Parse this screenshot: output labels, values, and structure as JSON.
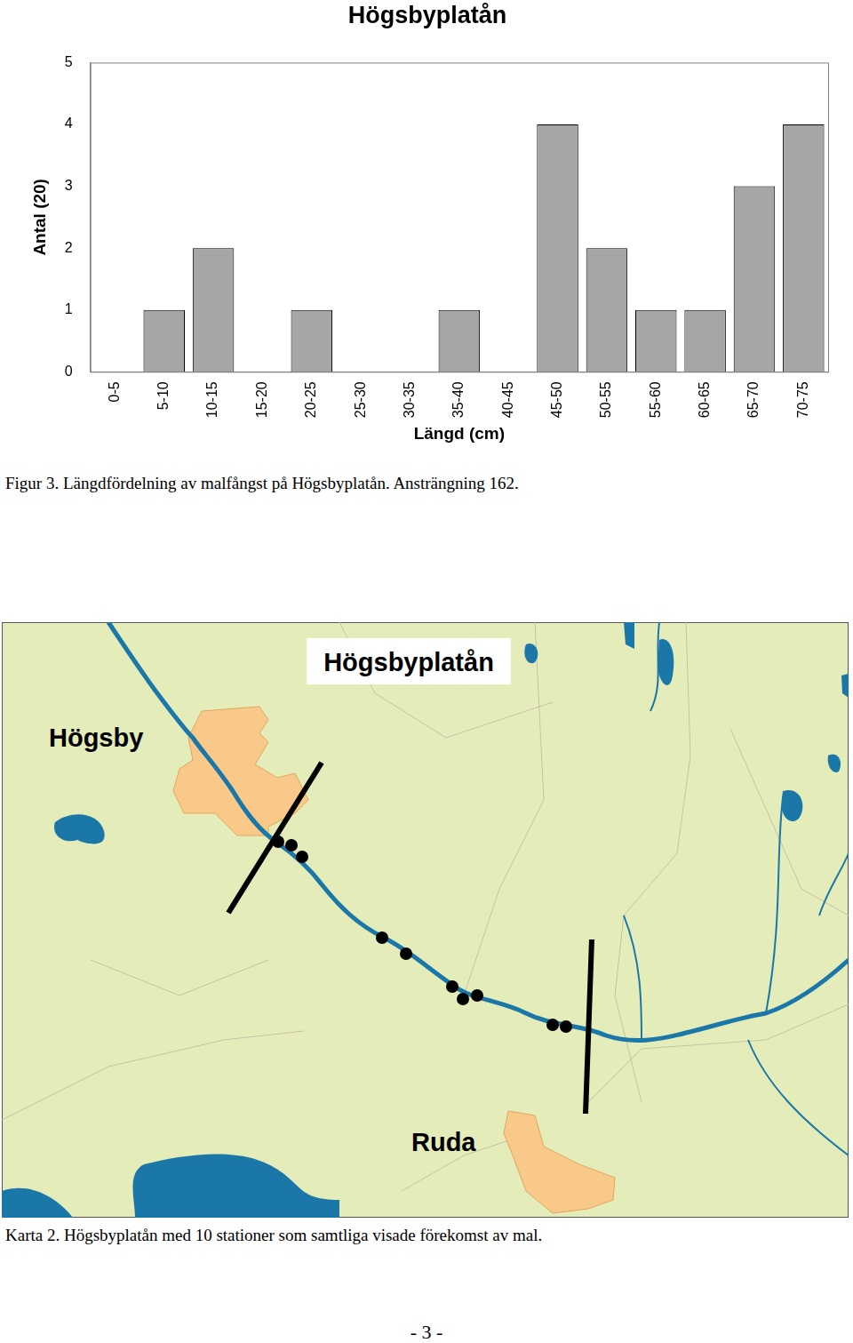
{
  "chart_data": {
    "type": "bar",
    "title": "Högsbyplatån",
    "x_label": "Längd (cm)",
    "y_label": "Antal (20)",
    "categories": [
      "0-5",
      "5-10",
      "10-15",
      "15-20",
      "20-25",
      "25-30",
      "30-35",
      "35-40",
      "40-45",
      "45-50",
      "50-55",
      "55-60",
      "60-65",
      "65-70",
      "70-75"
    ],
    "values": [
      0,
      1,
      2,
      0,
      1,
      0,
      0,
      1,
      0,
      4,
      2,
      1,
      1,
      3,
      4
    ],
    "color": "#a6a6a6",
    "ylim": [
      0,
      5
    ],
    "yticks": [
      0,
      1,
      2,
      3,
      4,
      5
    ],
    "grid": false
  },
  "figure_caption": "Figur 3. Längdfördelning av malfångst på Högsbyplatån. Ansträngning 162.",
  "map": {
    "title": "Högsbyplatån",
    "town_labels": [
      "Högsby",
      "Ruda"
    ],
    "caption": "Karta 2. Högsbyplatån med 10 stationer som samtliga visade förekomst av mal."
  },
  "page_number": "- 3 -"
}
